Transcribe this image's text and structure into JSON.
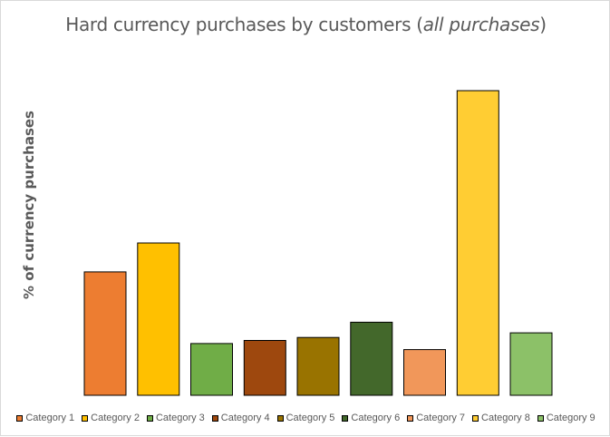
{
  "chart_data": {
    "type": "bar",
    "title_main": "Hard currency purchases by customers (",
    "title_italic": "all purchases",
    "title_end": ")",
    "ylabel": "% of currency purchases",
    "categories": [
      "Category 1",
      "Category 2",
      "Category 3",
      "Category 4",
      "Category 5",
      "Category 6",
      "Category 7",
      "Category 8",
      "Category 9"
    ],
    "values": [
      4.05,
      5.0,
      1.7,
      1.8,
      1.9,
      2.4,
      1.5,
      10.0,
      2.05
    ],
    "ylim": [
      0,
      10
    ],
    "colors": [
      "#ED7D31",
      "#FFC000",
      "#70AD47",
      "#9E480E",
      "#997300",
      "#43682B",
      "#F1975A",
      "#FFCD33",
      "#8CC168"
    ],
    "grid": false,
    "legend_position": "bottom"
  }
}
